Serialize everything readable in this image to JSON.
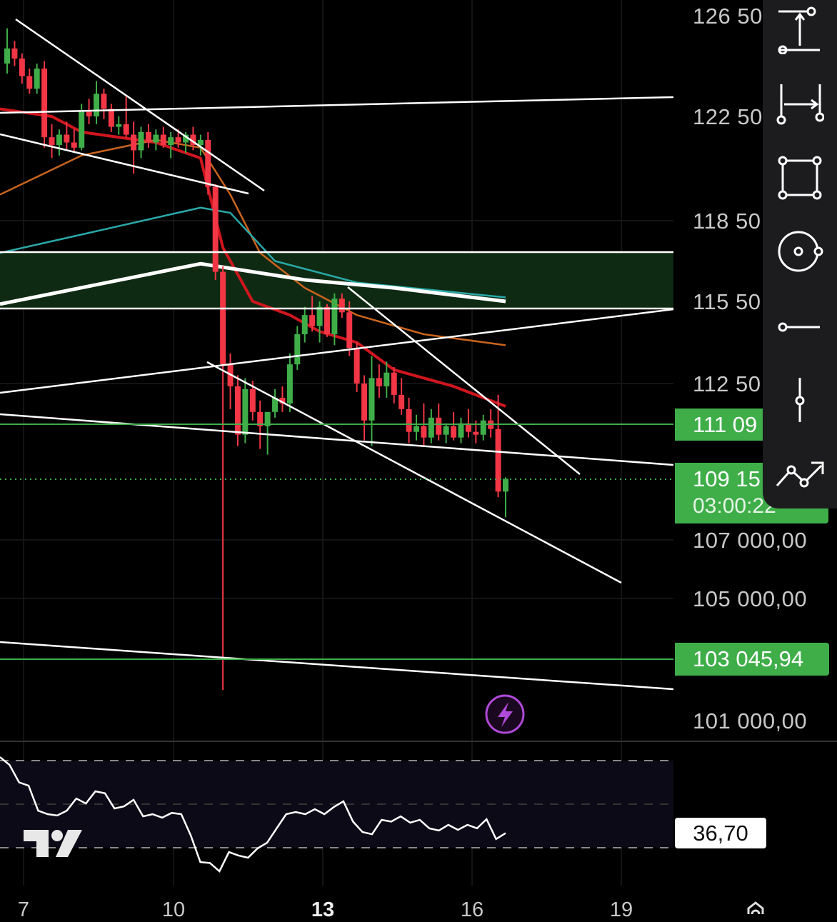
{
  "price_axis": {
    "labels": [
      "126 50",
      "122 50",
      "118 50",
      "115 50",
      "112 50",
      "107 000,00",
      "105 000,00",
      "101 000,00"
    ],
    "badge_level": "111 09",
    "badge_current_price": "109 15",
    "badge_countdown": "03:00:22",
    "badge_support": "103 045,94"
  },
  "time_axis": {
    "labels": [
      "7",
      "10",
      "13",
      "16",
      "19"
    ]
  },
  "rsi": {
    "current_value": "36,70",
    "values": [
      71.6,
      68,
      60,
      58.5,
      47,
      45.4,
      44.8,
      47,
      52.6,
      50.3,
      55.9,
      55,
      48,
      49,
      52,
      44.4,
      45.4,
      43.8,
      46,
      45.4,
      35.6,
      23.4,
      23,
      19.2,
      28,
      26.4,
      25.4,
      29.7,
      32.3,
      38.9,
      45.4,
      46.4,
      45.4,
      47.7,
      45.4,
      48.7,
      51.3,
      42,
      37.2,
      36.2,
      42.8,
      42,
      44.4,
      41.5,
      42.8,
      38.9,
      37.9,
      40.5,
      38.2,
      40.5,
      38.9,
      43.1,
      34,
      36.7
    ]
  },
  "colors": {
    "up": "#3fae49",
    "down": "#f23645",
    "accent_purple": "#b04ad8"
  },
  "icons": [
    "vertical-measure-icon",
    "horizontal-measure-icon",
    "rectangle-tool-icon",
    "circle-tool-icon",
    "horizontal-ray-icon",
    "vertical-line-icon",
    "path-tool-icon",
    "lightning-icon",
    "gear-icon",
    "tradingview-logo"
  ],
  "chart_data": {
    "type": "candlestick",
    "ylim": [
      101000,
      126500
    ],
    "candles": [
      [
        124600,
        126000,
        124200,
        125200
      ],
      [
        125200,
        125500,
        124500,
        124800
      ],
      [
        124800,
        125000,
        123800,
        124100
      ],
      [
        124100,
        124400,
        123400,
        123600
      ],
      [
        123600,
        124600,
        123400,
        124400
      ],
      [
        124400,
        124700,
        121300,
        121700
      ],
      [
        121700,
        122200,
        120900,
        121400
      ],
      [
        121400,
        122000,
        121000,
        121800
      ],
      [
        121800,
        122300,
        121200,
        121500
      ],
      [
        121500,
        122000,
        121100,
        121300
      ],
      [
        121300,
        123000,
        121200,
        122700
      ],
      [
        122700,
        123200,
        122200,
        122500
      ],
      [
        122500,
        123900,
        122200,
        123400
      ],
      [
        123400,
        123600,
        122400,
        122800
      ],
      [
        122800,
        123000,
        121900,
        122100
      ],
      [
        122100,
        122500,
        121800,
        122200
      ],
      [
        122200,
        123300,
        121700,
        121800
      ],
      [
        121800,
        122300,
        120300,
        121200
      ],
      [
        121200,
        122100,
        120900,
        121900
      ],
      [
        121900,
        122200,
        121300,
        121500
      ],
      [
        121500,
        122000,
        121200,
        121800
      ],
      [
        121800,
        122100,
        121300,
        121400
      ],
      [
        121400,
        121900,
        120900,
        121700
      ],
      [
        121700,
        122000,
        121300,
        121500
      ],
      [
        121500,
        121900,
        121100,
        121800
      ],
      [
        121800,
        122100,
        121200,
        121400
      ],
      [
        121400,
        121800,
        121000,
        121600
      ],
      [
        121600,
        121900,
        119500,
        119800
      ],
      [
        119800,
        119900,
        116300,
        116600
      ],
      [
        116600,
        116800,
        102000,
        113200
      ],
      [
        113200,
        113600,
        111600,
        112400
      ],
      [
        112400,
        112800,
        110300,
        110700
      ],
      [
        110700,
        112700,
        110400,
        112300
      ],
      [
        112300,
        112600,
        111200,
        111500
      ],
      [
        111500,
        111900,
        110200,
        111000
      ],
      [
        111000,
        111400,
        110000,
        111500
      ],
      [
        111500,
        112300,
        111300,
        112000
      ],
      [
        112000,
        112400,
        111500,
        111800
      ],
      [
        111800,
        113600,
        111500,
        113200
      ],
      [
        113200,
        114600,
        113000,
        114300
      ],
      [
        114300,
        115300,
        114000,
        115000
      ],
      [
        115000,
        115700,
        114400,
        114600
      ],
      [
        114600,
        115500,
        114000,
        115300
      ],
      [
        115300,
        115400,
        114200,
        114300
      ],
      [
        114300,
        115800,
        113900,
        115600
      ],
      [
        115600,
        115800,
        114900,
        115100
      ],
      [
        115100,
        115500,
        113500,
        113800
      ],
      [
        113800,
        114000,
        112200,
        112500
      ],
      [
        112500,
        112800,
        110500,
        111200
      ],
      [
        111200,
        113500,
        110300,
        112700
      ],
      [
        112700,
        113200,
        112000,
        112400
      ],
      [
        112400,
        113300,
        112000,
        112900
      ],
      [
        112900,
        113100,
        111800,
        112100
      ],
      [
        112100,
        112700,
        111400,
        111600
      ],
      [
        111600,
        112000,
        110400,
        110800
      ],
      [
        110800,
        111400,
        110500,
        111000
      ],
      [
        111000,
        111800,
        110300,
        110600
      ],
      [
        110600,
        111600,
        110400,
        111300
      ],
      [
        111300,
        111800,
        110500,
        110700
      ],
      [
        110700,
        111100,
        110400,
        111000
      ],
      [
        111000,
        111500,
        110500,
        110600
      ],
      [
        110600,
        111300,
        110400,
        111100
      ],
      [
        111100,
        111600,
        110600,
        110800
      ],
      [
        110800,
        111200,
        110400,
        110700
      ],
      [
        110700,
        111400,
        110500,
        111200
      ],
      [
        111200,
        111600,
        110600,
        110900
      ],
      [
        110900,
        112100,
        108500,
        108700
      ],
      [
        108700,
        109200,
        107800,
        109150
      ]
    ],
    "moving_averages": [
      {
        "name": "red",
        "color": "#d0161e",
        "width": 4,
        "points": [
          [
            0,
            122800
          ],
          [
            6,
            122500
          ],
          [
            10,
            121900
          ],
          [
            20,
            121500
          ],
          [
            26,
            120900
          ],
          [
            29,
            117500
          ],
          [
            33,
            115500
          ],
          [
            38,
            115000
          ],
          [
            42,
            114400
          ],
          [
            47,
            114000
          ],
          [
            52,
            113000
          ],
          [
            60,
            112400
          ],
          [
            67,
            111700
          ]
        ]
      },
      {
        "name": "orange",
        "color": "#c8641e",
        "width": 2.5,
        "points": [
          [
            0,
            119500
          ],
          [
            10,
            121000
          ],
          [
            20,
            121600
          ],
          [
            26,
            121300
          ],
          [
            30,
            119500
          ],
          [
            34,
            117300
          ],
          [
            40,
            116000
          ],
          [
            47,
            115000
          ],
          [
            56,
            114300
          ],
          [
            67,
            113900
          ]
        ]
      },
      {
        "name": "teal",
        "color": "#2aa8a8",
        "width": 2.5,
        "points": [
          [
            0,
            117300
          ],
          [
            26,
            119000
          ],
          [
            30,
            118800
          ],
          [
            36,
            117000
          ],
          [
            47,
            116200
          ],
          [
            67,
            115650
          ]
        ]
      },
      {
        "name": "white",
        "color": "#ffffff",
        "width": 5,
        "points": [
          [
            0,
            115400
          ],
          [
            26,
            116900
          ],
          [
            40,
            116300
          ],
          [
            52,
            116000
          ],
          [
            67,
            115500
          ]
        ]
      }
    ]
  }
}
